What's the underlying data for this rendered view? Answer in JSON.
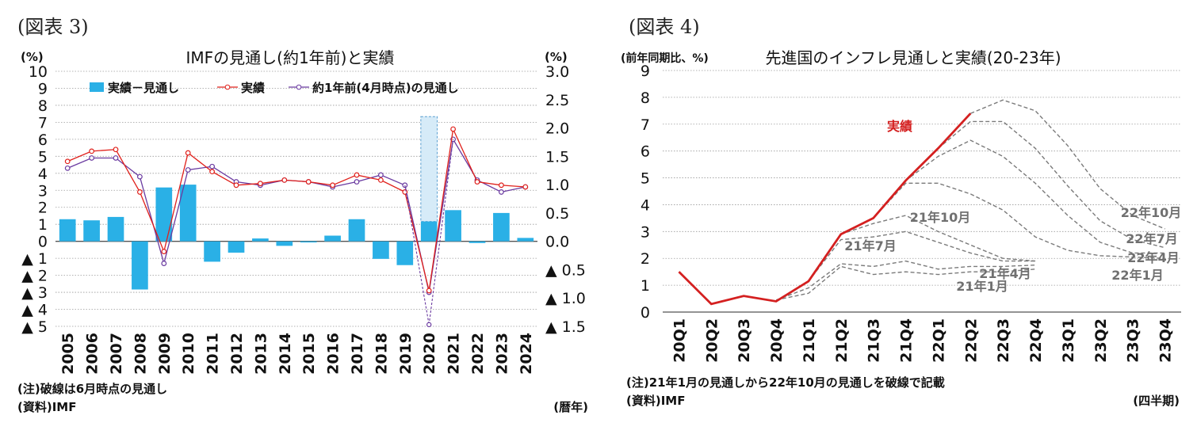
{
  "left": {
    "figure_label": "(図表 3)",
    "note": "(注)破線は6月時点の見通し",
    "source": "(資料)IMF",
    "period_unit": "(暦年)",
    "chart_data": {
      "type": "bar",
      "title": "IMFの見通し(約1年前)と実績",
      "xlabel": "",
      "ylabel_left": "(%)",
      "ylabel_right": "(%)",
      "ylim_left": [
        -5,
        10
      ],
      "ylim_right": [
        -1.5,
        3.0
      ],
      "yticks_left": [
        "10",
        "9",
        "8",
        "7",
        "6",
        "5",
        "4",
        "3",
        "2",
        "1",
        "0",
        "▲ 1",
        "▲ 2",
        "▲ 3",
        "▲ 4",
        "▲ 5"
      ],
      "yticks_right": [
        "3.0",
        "2.5",
        "2.0",
        "1.5",
        "1.0",
        "0.5",
        "0.0",
        "▲ 0.5",
        "▲ 1.0",
        "▲ 1.5"
      ],
      "grid": true,
      "legend_position": "top",
      "categories": [
        "2005",
        "2006",
        "2007",
        "2008",
        "2009",
        "2010",
        "2011",
        "2012",
        "2013",
        "2014",
        "2015",
        "2016",
        "2017",
        "2018",
        "2019",
        "2020",
        "2021",
        "2022",
        "2023",
        "2024"
      ],
      "series": [
        {
          "name": "実績－見通し",
          "axis": "right",
          "type": "bar",
          "color": "#2ab0e6",
          "values": [
            0.39,
            0.37,
            0.43,
            -0.85,
            0.95,
            1.0,
            -0.36,
            -0.2,
            0.05,
            -0.08,
            -0.02,
            0.1,
            0.39,
            -0.31,
            -0.42,
            0.35,
            0.55,
            -0.03,
            0.5,
            0.06
          ]
        },
        {
          "name": "実績",
          "axis": "left",
          "type": "line",
          "color": "#e0201b",
          "values": [
            4.7,
            5.3,
            5.4,
            2.9,
            -0.6,
            5.2,
            4.1,
            3.3,
            3.4,
            3.6,
            3.5,
            3.3,
            3.9,
            3.6,
            2.9,
            -2.9,
            6.6,
            3.5,
            3.3,
            3.2
          ]
        },
        {
          "name": "約1年前(4月時点)の見通し",
          "axis": "left",
          "type": "line",
          "color": "#6a3aa0",
          "values": [
            4.3,
            4.9,
            4.9,
            3.8,
            -1.3,
            4.2,
            4.4,
            3.5,
            3.3,
            3.6,
            3.5,
            3.2,
            3.5,
            3.9,
            3.3,
            -3.0,
            6.0,
            3.6,
            2.9,
            3.2
          ]
        }
      ],
      "annotations": [
        {
          "kind": "dashed-bar",
          "category": "2020",
          "axis": "right",
          "from": 0.35,
          "to": 2.2,
          "color": "#d6ebf8"
        },
        {
          "kind": "dashed-line",
          "series": "約1年前(4月時点)の見通し",
          "category": "2020",
          "value": -4.9
        }
      ]
    }
  },
  "right": {
    "figure_label": "(図表 4)",
    "note": "(注)21年1月の見通しから22年10月の見通しを破線で記載",
    "source": "(資料)IMF",
    "period_unit": "(四半期)",
    "chart_data": {
      "type": "line",
      "title": "先進国のインフレ見通しと実績(20-23年)",
      "ylabel": "(前年同期比、%)",
      "xlabel": "",
      "ylim": [
        0,
        9
      ],
      "yticks": [
        "0",
        "1",
        "2",
        "3",
        "4",
        "5",
        "6",
        "7",
        "8",
        "9"
      ],
      "grid": true,
      "categories": [
        "20Q1",
        "20Q2",
        "20Q3",
        "20Q4",
        "21Q1",
        "21Q2",
        "21Q3",
        "21Q4",
        "22Q1",
        "22Q2",
        "22Q3",
        "22Q4",
        "23Q1",
        "23Q2",
        "23Q3",
        "23Q4"
      ],
      "series": [
        {
          "name": "実績",
          "style": "solid",
          "color": "#d42020",
          "values": [
            1.5,
            0.3,
            0.6,
            0.4,
            1.15,
            2.9,
            3.5,
            4.9,
            6.1,
            7.4,
            null,
            null,
            null,
            null,
            null,
            null
          ]
        },
        {
          "name": "21年1月",
          "style": "dashed",
          "color": "#7a7a7a",
          "values": [
            null,
            null,
            null,
            0.45,
            0.7,
            1.7,
            1.4,
            1.5,
            1.4,
            1.5,
            1.5,
            1.6,
            null,
            null,
            null,
            null
          ]
        },
        {
          "name": "21年4月",
          "style": "dashed",
          "color": "#7a7a7a",
          "values": [
            null,
            null,
            null,
            0.45,
            0.9,
            1.8,
            1.7,
            1.9,
            1.6,
            1.7,
            1.7,
            1.75,
            null,
            null,
            null,
            null
          ]
        },
        {
          "name": "21年7月",
          "style": "dashed",
          "color": "#7a7a7a",
          "values": [
            null,
            null,
            null,
            null,
            1.15,
            2.7,
            2.8,
            3.0,
            2.6,
            2.2,
            1.9,
            1.9,
            null,
            null,
            null,
            null
          ]
        },
        {
          "name": "21年10月",
          "style": "dashed",
          "color": "#7a7a7a",
          "values": [
            null,
            null,
            null,
            null,
            null,
            2.9,
            3.3,
            3.6,
            3.0,
            2.5,
            2.0,
            1.9,
            null,
            null,
            null,
            null
          ]
        },
        {
          "name": "22年1月",
          "style": "dashed",
          "color": "#7a7a7a",
          "values": [
            null,
            null,
            null,
            null,
            null,
            null,
            3.5,
            4.8,
            4.8,
            4.4,
            3.8,
            2.8,
            2.3,
            2.1,
            2.05,
            2.0
          ]
        },
        {
          "name": "22年4月",
          "style": "dashed",
          "color": "#7a7a7a",
          "values": [
            null,
            null,
            null,
            null,
            null,
            null,
            null,
            4.9,
            5.8,
            6.4,
            5.8,
            4.8,
            3.6,
            2.6,
            2.2,
            2.2
          ]
        },
        {
          "name": "22年7月",
          "style": "dashed",
          "color": "#7a7a7a",
          "values": [
            null,
            null,
            null,
            null,
            null,
            null,
            null,
            null,
            6.1,
            7.1,
            7.1,
            6.1,
            4.7,
            3.4,
            2.7,
            2.4
          ]
        },
        {
          "name": "22年10月",
          "style": "dashed",
          "color": "#7a7a7a",
          "values": [
            null,
            null,
            null,
            null,
            null,
            null,
            null,
            null,
            null,
            7.4,
            7.9,
            7.5,
            6.2,
            4.6,
            3.6,
            3.1
          ]
        }
      ],
      "series_labels": [
        {
          "text": "実績",
          "series": "実績",
          "color": "#d42020"
        },
        {
          "text": "21年10月",
          "series": "21年10月"
        },
        {
          "text": "21年7月",
          "series": "21年7月"
        },
        {
          "text": "21年4月",
          "series": "21年4月"
        },
        {
          "text": "21年1月",
          "series": "21年1月"
        },
        {
          "text": "22年10月",
          "series": "22年10月"
        },
        {
          "text": "22年7月",
          "series": "22年7月"
        },
        {
          "text": "22年4月",
          "series": "22年4月"
        },
        {
          "text": "22年1月",
          "series": "22年1月"
        }
      ]
    }
  }
}
